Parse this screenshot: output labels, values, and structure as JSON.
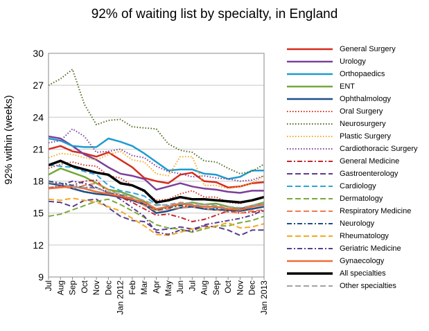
{
  "chart_data": {
    "type": "line",
    "title": "92% of waiting list by specialty, in England",
    "xlabel": "",
    "ylabel": "92% within (weeks)",
    "ylim": [
      9,
      30
    ],
    "yticks": [
      9,
      12,
      15,
      18,
      21,
      24,
      27,
      30
    ],
    "categories": [
      "Jul",
      "Aug",
      "Sep",
      "Oct",
      "Nov",
      "Dec",
      "Jan 2012",
      "Feb",
      "Mar",
      "Apr",
      "May",
      "Jun",
      "Jul",
      "Aug",
      "Sep",
      "Oct",
      "Nov",
      "Dec",
      "Jan 2013"
    ],
    "grid": "horizontal",
    "legend_position": "right",
    "series": [
      {
        "name": "General Surgery",
        "color": "#d62c1e",
        "dash": "solid",
        "width": 2.5,
        "values": [
          21.0,
          21.3,
          20.8,
          20.6,
          20.3,
          20.7,
          20.0,
          19.3,
          18.3,
          18.0,
          17.8,
          18.6,
          18.8,
          18.0,
          17.9,
          17.4,
          17.5,
          17.8,
          17.9
        ]
      },
      {
        "name": "Urology",
        "color": "#7b3f9a",
        "dash": "solid",
        "width": 2.5,
        "values": [
          22.2,
          22.0,
          21.3,
          20.5,
          20.0,
          19.3,
          18.7,
          18.5,
          18.2,
          17.2,
          17.5,
          17.8,
          17.5,
          17.3,
          17.2,
          17.0,
          16.9,
          17.1,
          17.1
        ]
      },
      {
        "name": "Orthopaedics",
        "color": "#1f9bd0",
        "dash": "solid",
        "width": 2.5,
        "values": [
          22.0,
          21.8,
          21.3,
          21.2,
          21.2,
          22.0,
          21.7,
          21.3,
          20.6,
          19.8,
          19.0,
          19.1,
          19.1,
          18.7,
          18.6,
          18.2,
          18.4,
          19.0,
          19.0
        ]
      },
      {
        "name": "ENT",
        "color": "#72a83a",
        "dash": "solid",
        "width": 2.5,
        "values": [
          18.6,
          19.2,
          18.8,
          18.4,
          17.8,
          17.2,
          17.0,
          16.6,
          16.1,
          15.3,
          15.6,
          15.8,
          16.0,
          15.8,
          15.9,
          15.6,
          15.4,
          15.7,
          16.0
        ]
      },
      {
        "name": "Ophthalmology",
        "color": "#1d4e89",
        "dash": "solid",
        "width": 2.5,
        "values": [
          17.8,
          17.6,
          17.3,
          17.0,
          16.8,
          16.7,
          16.5,
          16.2,
          15.8,
          15.0,
          15.2,
          15.5,
          15.6,
          15.4,
          15.3,
          15.3,
          15.2,
          15.4,
          15.6
        ]
      },
      {
        "name": "Oral Surgery",
        "color": "#d62c1e",
        "dash": "1.5 2.5",
        "width": 2,
        "values": [
          19.2,
          19.6,
          19.8,
          19.5,
          19.4,
          18.5,
          18.3,
          17.6,
          17.0,
          16.2,
          16.3,
          16.8,
          17.1,
          16.5,
          16.5,
          16.0,
          15.9,
          16.2,
          16.5
        ]
      },
      {
        "name": "Neurosurgery",
        "color": "#4e6a1e",
        "dash": "1.5 2.5",
        "width": 2,
        "values": [
          27.0,
          27.6,
          28.5,
          25.2,
          23.3,
          23.7,
          23.8,
          23.1,
          23.0,
          22.9,
          21.5,
          20.9,
          20.7,
          19.9,
          19.8,
          19.2,
          18.7,
          18.9,
          19.6
        ]
      },
      {
        "name": "Plastic Surgery",
        "color": "#f6a81c",
        "dash": "1.5 2.5",
        "width": 2,
        "values": [
          20.2,
          20.6,
          20.5,
          20.2,
          20.0,
          20.5,
          20.8,
          20.0,
          19.8,
          18.7,
          18.5,
          20.3,
          20.3,
          17.6,
          17.6,
          17.3,
          17.5,
          17.8,
          18.5
        ]
      },
      {
        "name": "Cardiothoracic Surgery",
        "color": "#7b3f9a",
        "dash": "1.5 2.5",
        "width": 2,
        "values": [
          21.6,
          21.8,
          22.9,
          22.2,
          20.7,
          20.8,
          21.0,
          20.4,
          20.2,
          19.4,
          18.9,
          18.7,
          18.4,
          18.5,
          18.3,
          18.2,
          18.0,
          18.1,
          18.5
        ]
      },
      {
        "name": "General Medicine",
        "color": "#c4262e",
        "dash": "7 3 2 3",
        "width": 2,
        "values": [
          17.9,
          17.7,
          17.6,
          18.0,
          18.1,
          16.8,
          16.5,
          16.0,
          15.4,
          14.8,
          14.9,
          14.6,
          14.2,
          14.4,
          14.8,
          15.2,
          15.0,
          15.1,
          15.2
        ]
      },
      {
        "name": "Gastroenterology",
        "color": "#5a3b8c",
        "dash": "8 4",
        "width": 2,
        "values": [
          16.1,
          16.0,
          15.6,
          16.2,
          16.3,
          15.5,
          14.7,
          14.3,
          14.2,
          13.4,
          13.5,
          13.7,
          13.5,
          13.8,
          13.7,
          13.4,
          12.9,
          13.4,
          13.4
        ]
      },
      {
        "name": "Cardiology",
        "color": "#2aa7d9",
        "dash": "8 4",
        "width": 2,
        "values": [
          19.5,
          19.4,
          19.3,
          18.9,
          18.6,
          17.6,
          17.1,
          16.9,
          16.6,
          15.8,
          15.7,
          15.9,
          15.8,
          15.6,
          15.5,
          15.3,
          15.4,
          15.6,
          15.9
        ]
      },
      {
        "name": "Dermatology",
        "color": "#7aa83a",
        "dash": "8 4",
        "width": 2,
        "values": [
          14.7,
          14.9,
          15.3,
          15.7,
          16.1,
          16.3,
          15.8,
          15.2,
          14.6,
          13.9,
          13.6,
          13.5,
          13.2,
          13.5,
          13.8,
          13.8,
          14.1,
          14.3,
          14.7
        ]
      },
      {
        "name": "Respiratory Medicine",
        "color": "#ef7c4a",
        "dash": "8 4",
        "width": 2,
        "values": [
          17.4,
          17.5,
          17.3,
          17.6,
          17.8,
          17.2,
          16.7,
          16.4,
          15.7,
          15.2,
          15.4,
          15.5,
          15.6,
          15.4,
          15.3,
          15.1,
          15.0,
          15.2,
          15.3
        ]
      },
      {
        "name": "Neurology",
        "color": "#1d4e89",
        "dash": "7 3 2 3",
        "width": 2,
        "values": [
          18.0,
          17.8,
          17.6,
          17.4,
          17.4,
          16.9,
          16.7,
          16.3,
          15.9,
          15.3,
          15.5,
          15.7,
          15.6,
          15.4,
          15.4,
          15.2,
          15.4,
          15.6,
          15.8
        ]
      },
      {
        "name": "Rheumatology",
        "color": "#f6a81c",
        "dash": "8 4",
        "width": 2,
        "values": [
          16.3,
          16.2,
          16.4,
          16.2,
          16.0,
          15.6,
          15.2,
          14.5,
          13.8,
          13.0,
          12.9,
          13.2,
          13.5,
          13.6,
          13.8,
          14.1,
          13.6,
          13.7,
          14.0
        ]
      },
      {
        "name": "Geriatric Medicine",
        "color": "#5a3b8c",
        "dash": "7 3 2 3",
        "width": 2,
        "values": [
          17.3,
          17.6,
          18.0,
          17.8,
          17.4,
          16.9,
          16.3,
          15.5,
          14.7,
          13.2,
          13.0,
          13.4,
          13.3,
          13.9,
          14.1,
          14.3,
          14.5,
          14.8,
          15.3
        ]
      },
      {
        "name": "Gynaecology",
        "color": "#ef6c35",
        "dash": "solid",
        "width": 2.5,
        "values": [
          17.3,
          17.4,
          17.5,
          17.3,
          17.0,
          16.8,
          16.6,
          16.3,
          16.0,
          15.4,
          15.6,
          15.9,
          15.7,
          15.6,
          15.6,
          15.4,
          15.3,
          15.6,
          15.8
        ]
      },
      {
        "name": "All specialties",
        "color": "#000000",
        "dash": "solid",
        "width": 3.5,
        "values": [
          19.5,
          19.9,
          19.4,
          19.1,
          18.8,
          18.6,
          17.8,
          17.6,
          17.1,
          16.0,
          16.2,
          16.5,
          16.3,
          16.3,
          16.2,
          16.1,
          16.0,
          16.2,
          16.5
        ]
      },
      {
        "name": "Other specialties",
        "color": "#a2a2a2",
        "dash": "8 4",
        "width": 2,
        "values": [
          17.9,
          17.7,
          17.5,
          17.4,
          17.3,
          17.0,
          16.8,
          16.5,
          16.2,
          15.7,
          15.8,
          16.0,
          15.9,
          15.8,
          15.7,
          15.6,
          15.5,
          15.7,
          15.9
        ]
      }
    ]
  }
}
